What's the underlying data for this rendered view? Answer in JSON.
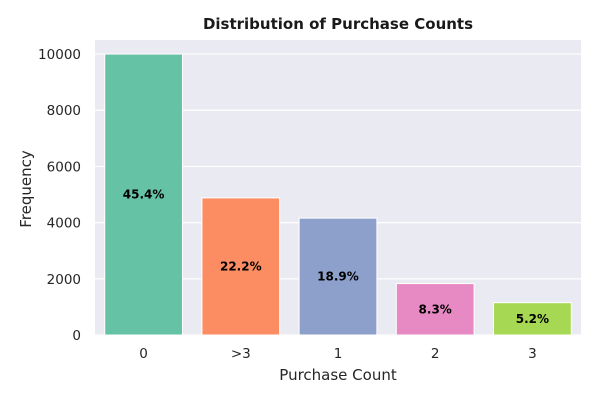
{
  "chart_data": {
    "type": "bar",
    "title": "Distribution of Purchase Counts",
    "xlabel": "Purchase Count",
    "ylabel": "Frequency",
    "categories": [
      "0",
      ">3",
      "1",
      "2",
      "3"
    ],
    "values": [
      10000,
      4880,
      4160,
      1830,
      1150
    ],
    "data_labels": [
      "45.4%",
      "22.2%",
      "18.9%",
      "8.3%",
      "5.2%"
    ],
    "colors": [
      "#66c2a5",
      "#fc8d62",
      "#8da0cb",
      "#e78ac3",
      "#a6d854"
    ],
    "ylim": [
      0,
      10500
    ],
    "yticks": [
      0,
      2000,
      4000,
      6000,
      8000,
      10000
    ],
    "grid": true,
    "background": "#eaeaf2"
  }
}
